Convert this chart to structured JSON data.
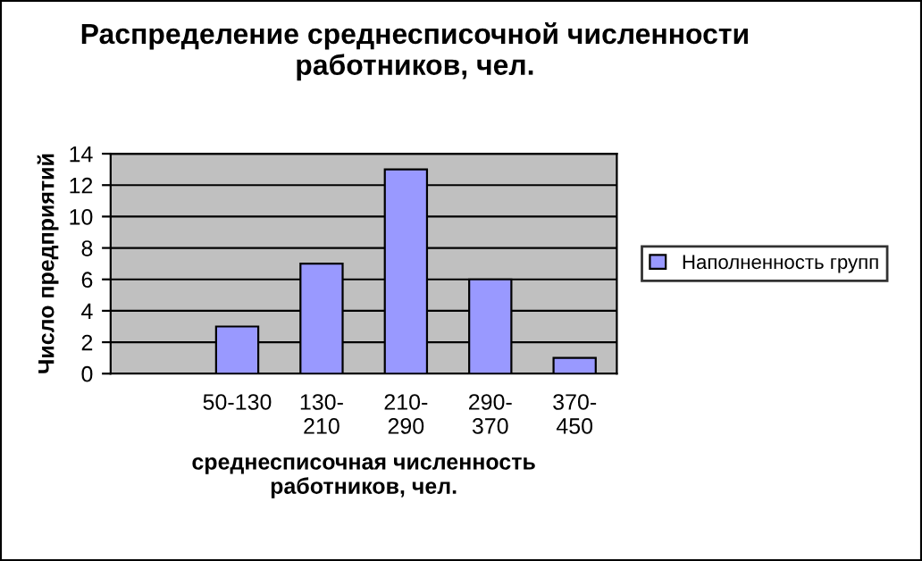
{
  "chart_data": {
    "type": "bar",
    "title": "Распределение среднесписочной численности\nработников, чел.",
    "xlabel": "среднесписочная численность\nработников, чел.",
    "ylabel": "Число предприятий",
    "categories": [
      null,
      "50-130",
      "130-\n210",
      "210-\n290",
      "290-\n370",
      "370-\n450"
    ],
    "series": [
      {
        "name": "Наполненность групп",
        "color": "#9999ff",
        "values": [
          null,
          3,
          7,
          13,
          6,
          1
        ]
      }
    ],
    "ylim": [
      0,
      14
    ],
    "yticks": [
      0,
      2,
      4,
      6,
      8,
      10,
      12,
      14
    ],
    "grid": "y",
    "legend": "right"
  }
}
